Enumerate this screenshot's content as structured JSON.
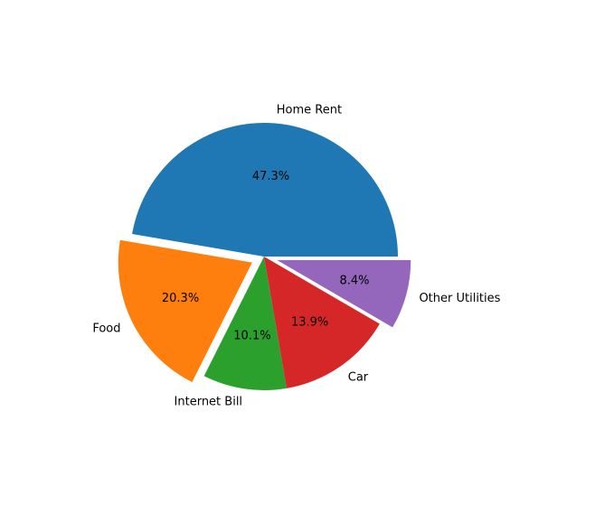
{
  "chart_data": {
    "type": "pie",
    "title": "",
    "categories": [
      "Home Rent",
      "Food",
      "Internet Bill",
      "Car",
      "Other Utilities"
    ],
    "values": [
      47.3,
      20.3,
      10.1,
      13.9,
      8.4
    ],
    "percent_labels": [
      "47.3%",
      "20.3%",
      "10.1%",
      "13.9%",
      "8.4%"
    ],
    "explode": [
      0,
      0.1,
      0,
      0,
      0.1
    ],
    "colors": [
      "#1f77b4",
      "#ff7f0e",
      "#2ca02c",
      "#d62728",
      "#9467bd"
    ],
    "start_angle_deg": 0,
    "direction": "counterclockwise",
    "legend": "none"
  }
}
